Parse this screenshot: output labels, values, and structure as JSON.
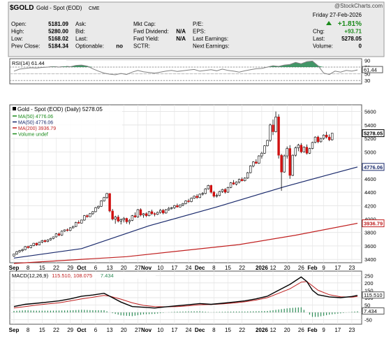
{
  "header": {
    "symbol": "$GOLD",
    "name": "Gold - Spot (EOD)",
    "exchange": "CME",
    "source": "@StockCharts.com",
    "date": "Friday   27-Feb-2026",
    "rows": [
      [
        {
          "l": "Open:",
          "v": "5181.09"
        },
        {
          "l": "Ask:",
          "v": ""
        },
        {
          "l": "Mkt Cap:",
          "v": ""
        },
        {
          "l": "P/E:",
          "v": ""
        }
      ],
      [
        {
          "l": "High:",
          "v": "5280.00"
        },
        {
          "l": "Bid:",
          "v": ""
        },
        {
          "l": "Fwd Dividend:",
          "v": "N/A"
        },
        {
          "l": "EPS:",
          "v": ""
        }
      ],
      [
        {
          "l": "Low:",
          "v": "5168.02"
        },
        {
          "l": "Last:",
          "v": ""
        },
        {
          "l": "Fwd Yield:",
          "v": "N/A"
        },
        {
          "l": "Last Earnings:",
          "v": ""
        }
      ],
      [
        {
          "l": "Prev Close:",
          "v": "5184.34"
        },
        {
          "l": "Optionable:",
          "v": "no"
        },
        {
          "l": "SCTR:",
          "v": ""
        },
        {
          "l": "Next Earnings:",
          "v": ""
        }
      ]
    ],
    "right": [
      {
        "l": "",
        "v": "+1.81%"
      },
      {
        "l": "Chg:",
        "v": "+93.71"
      },
      {
        "l": "Last:",
        "v": "5278.05"
      },
      {
        "l": "Volume:",
        "v": "0"
      }
    ],
    "colors": {
      "up": "#1a8a1a",
      "bg": "#eaeaea",
      "border": "#999999"
    }
  },
  "chart_data": [
    {
      "type": "line",
      "panel": "rsi",
      "title": "RSI(14) 61.44",
      "last_value": 61.44,
      "ylim": [
        20,
        95
      ],
      "yticks": [
        30,
        50,
        70,
        90
      ],
      "overbought": 70,
      "oversold": 30,
      "x": [
        0,
        2,
        4,
        6,
        8,
        10,
        12,
        14,
        16,
        18,
        20,
        22,
        24,
        26,
        28,
        30,
        32,
        34,
        36,
        38,
        40,
        42,
        44,
        46,
        48,
        50,
        52,
        54,
        56,
        58,
        60,
        62,
        64,
        66,
        68,
        70,
        72,
        74,
        76,
        78,
        80,
        82,
        84,
        86,
        88,
        90,
        92,
        94,
        96,
        98,
        100,
        102,
        104,
        106,
        108,
        110,
        112,
        114,
        116,
        118,
        120,
        122
      ],
      "values": [
        58,
        64,
        66,
        68,
        67,
        69,
        70,
        72,
        70,
        73,
        71,
        75,
        76,
        73,
        65,
        58,
        52,
        49,
        47,
        51,
        48,
        55,
        60,
        56,
        54,
        52,
        55,
        58,
        60,
        57,
        59,
        61,
        63,
        58,
        60,
        62,
        59,
        64,
        60,
        58,
        55,
        59,
        62,
        65,
        66,
        70,
        74,
        72,
        76,
        78,
        84,
        80,
        86,
        88,
        74,
        52,
        48,
        58,
        55,
        60,
        58,
        61.44
      ],
      "colors": {
        "line": "#808080",
        "fill": "#2e8b57"
      }
    },
    {
      "type": "candlestick",
      "panel": "price",
      "title": "Gold - Spot (EOD) (Daily) 5278.05",
      "legend": [
        {
          "name": "MA(50) 4776.06",
          "color": "#1a8a1a"
        },
        {
          "name": "MA(50) 4776.06",
          "color": "#1a2a6c"
        },
        {
          "name": "MA(200) 3936.79",
          "color": "#c02020"
        },
        {
          "name": "Volume undef",
          "color": "#1a8a1a"
        }
      ],
      "ylim": [
        3350,
        5700
      ],
      "yticks": [
        3400,
        3600,
        3800,
        4000,
        4200,
        4400,
        4600,
        4800,
        5000,
        5200,
        5400,
        5600
      ],
      "value_labels": [
        {
          "text": "5278.05",
          "value": 5278.05,
          "color": "#000000"
        },
        {
          "text": "4776.06",
          "value": 4776.06,
          "color": "#1a2a6c"
        },
        {
          "text": "3936.79",
          "value": 3936.79,
          "color": "#c02020"
        }
      ],
      "x_labels": [
        {
          "i": 0,
          "text": "Sep",
          "bold": true
        },
        {
          "i": 5,
          "text": "8"
        },
        {
          "i": 10,
          "text": "15"
        },
        {
          "i": 15,
          "text": "22"
        },
        {
          "i": 20,
          "text": "29"
        },
        {
          "i": 24,
          "text": "Oct",
          "bold": true
        },
        {
          "i": 29,
          "text": "6"
        },
        {
          "i": 34,
          "text": "13"
        },
        {
          "i": 39,
          "text": "20"
        },
        {
          "i": 44,
          "text": "27"
        },
        {
          "i": 47,
          "text": "Nov",
          "bold": true
        },
        {
          "i": 52,
          "text": "10"
        },
        {
          "i": 57,
          "text": "17"
        },
        {
          "i": 62,
          "text": "24"
        },
        {
          "i": 66,
          "text": "Dec",
          "bold": true
        },
        {
          "i": 71,
          "text": "8"
        },
        {
          "i": 76,
          "text": "15"
        },
        {
          "i": 81,
          "text": "22"
        },
        {
          "i": 88,
          "text": "2026",
          "bold": true
        },
        {
          "i": 92,
          "text": "12"
        },
        {
          "i": 97,
          "text": "20"
        },
        {
          "i": 102,
          "text": "26"
        },
        {
          "i": 106,
          "text": "Feb",
          "bold": true
        },
        {
          "i": 110,
          "text": "9"
        },
        {
          "i": 115,
          "text": "17"
        },
        {
          "i": 120,
          "text": "23"
        }
      ],
      "candles": [
        [
          3450,
          3485,
          3440,
          3480
        ],
        [
          3480,
          3525,
          3470,
          3515
        ],
        [
          3515,
          3540,
          3500,
          3530
        ],
        [
          3530,
          3560,
          3510,
          3545
        ],
        [
          3545,
          3600,
          3535,
          3590
        ],
        [
          3590,
          3605,
          3560,
          3575
        ],
        [
          3575,
          3615,
          3565,
          3605
        ],
        [
          3605,
          3645,
          3595,
          3640
        ],
        [
          3640,
          3650,
          3600,
          3615
        ],
        [
          3615,
          3660,
          3610,
          3655
        ],
        [
          3655,
          3690,
          3640,
          3680
        ],
        [
          3680,
          3695,
          3650,
          3665
        ],
        [
          3665,
          3700,
          3655,
          3690
        ],
        [
          3690,
          3720,
          3680,
          3710
        ],
        [
          3710,
          3740,
          3700,
          3735
        ],
        [
          3735,
          3790,
          3725,
          3780
        ],
        [
          3780,
          3800,
          3745,
          3760
        ],
        [
          3760,
          3830,
          3750,
          3820
        ],
        [
          3820,
          3845,
          3810,
          3840
        ],
        [
          3840,
          3860,
          3815,
          3830
        ],
        [
          3830,
          3880,
          3820,
          3870
        ],
        [
          3870,
          3900,
          3860,
          3890
        ],
        [
          3890,
          3960,
          3880,
          3950
        ],
        [
          3950,
          3980,
          3930,
          3940
        ],
        [
          3940,
          3990,
          3935,
          3985
        ],
        [
          3985,
          4060,
          3975,
          4050
        ],
        [
          4050,
          4070,
          4020,
          4035
        ],
        [
          4035,
          4090,
          4030,
          4080
        ],
        [
          4080,
          4120,
          4060,
          4110
        ],
        [
          4110,
          4180,
          4100,
          4170
        ],
        [
          4170,
          4200,
          4150,
          4190
        ],
        [
          4190,
          4280,
          4180,
          4270
        ],
        [
          4270,
          4330,
          4260,
          4320
        ],
        [
          4320,
          4390,
          4300,
          4380
        ],
        [
          4380,
          4385,
          4100,
          4120
        ],
        [
          4120,
          4150,
          3980,
          4000
        ],
        [
          4000,
          4050,
          3930,
          4030
        ],
        [
          4030,
          4060,
          3950,
          3970
        ],
        [
          3970,
          4010,
          3920,
          3990
        ],
        [
          3990,
          4030,
          3950,
          4010
        ],
        [
          4010,
          4020,
          3930,
          3960
        ],
        [
          3960,
          4000,
          3920,
          3980
        ],
        [
          3980,
          4060,
          3970,
          4050
        ],
        [
          4050,
          4100,
          4020,
          4030
        ],
        [
          4030,
          4150,
          4020,
          4140
        ],
        [
          4140,
          4160,
          4040,
          4060
        ],
        [
          4060,
          4090,
          4020,
          4080
        ],
        [
          4080,
          4100,
          4030,
          4050
        ],
        [
          4050,
          4120,
          4040,
          4110
        ],
        [
          4110,
          4140,
          4060,
          4080
        ],
        [
          4080,
          4100,
          4040,
          4070
        ],
        [
          4070,
          4110,
          4060,
          4100
        ],
        [
          4100,
          4150,
          4080,
          4130
        ],
        [
          4130,
          4150,
          4070,
          4090
        ],
        [
          4090,
          4150,
          4080,
          4140
        ],
        [
          4140,
          4180,
          4120,
          4160
        ],
        [
          4160,
          4180,
          4140,
          4170
        ],
        [
          4170,
          4210,
          4150,
          4200
        ],
        [
          4200,
          4230,
          4170,
          4180
        ],
        [
          4180,
          4220,
          4170,
          4210
        ],
        [
          4210,
          4240,
          4190,
          4230
        ],
        [
          4230,
          4280,
          4220,
          4270
        ],
        [
          4270,
          4300,
          4240,
          4260
        ],
        [
          4260,
          4320,
          4250,
          4310
        ],
        [
          4310,
          4350,
          4300,
          4340
        ],
        [
          4340,
          4370,
          4300,
          4320
        ],
        [
          4320,
          4380,
          4310,
          4370
        ],
        [
          4370,
          4400,
          4350,
          4380
        ],
        [
          4380,
          4460,
          4370,
          4450
        ],
        [
          4450,
          4510,
          4440,
          4500
        ],
        [
          4500,
          4510,
          4380,
          4400
        ],
        [
          4400,
          4420,
          4320,
          4340
        ],
        [
          4340,
          4380,
          4320,
          4350
        ],
        [
          4350,
          4420,
          4340,
          4410
        ],
        [
          4410,
          4450,
          4390,
          4440
        ],
        [
          4440,
          4460,
          4380,
          4400
        ],
        [
          4400,
          4480,
          4390,
          4470
        ],
        [
          4470,
          4550,
          4460,
          4540
        ],
        [
          4540,
          4580,
          4510,
          4520
        ],
        [
          4520,
          4560,
          4500,
          4550
        ],
        [
          4550,
          4600,
          4530,
          4590
        ],
        [
          4590,
          4620,
          4560,
          4570
        ],
        [
          4570,
          4620,
          4560,
          4610
        ],
        [
          4610,
          4700,
          4600,
          4690
        ],
        [
          4690,
          4800,
          4680,
          4790
        ],
        [
          4790,
          4860,
          4770,
          4850
        ],
        [
          4850,
          4890,
          4820,
          4830
        ],
        [
          4830,
          4950,
          4820,
          4940
        ],
        [
          4940,
          5000,
          4900,
          4980
        ],
        [
          4980,
          5100,
          4970,
          5090
        ],
        [
          5090,
          5180,
          5080,
          5170
        ],
        [
          5170,
          5420,
          5150,
          5400
        ],
        [
          5400,
          5480,
          5250,
          5300
        ],
        [
          5300,
          5600,
          5290,
          5520
        ],
        [
          5520,
          5560,
          4900,
          4950
        ],
        [
          4950,
          4970,
          4420,
          4700
        ],
        [
          4700,
          4960,
          4690,
          4940
        ],
        [
          4940,
          5080,
          4900,
          5050
        ],
        [
          5050,
          5100,
          4600,
          4650
        ],
        [
          4650,
          4960,
          4640,
          4950
        ],
        [
          4950,
          5080,
          4930,
          5060
        ],
        [
          5060,
          5120,
          5010,
          5100
        ],
        [
          5100,
          5130,
          4980,
          5000
        ],
        [
          5000,
          5080,
          4990,
          5070
        ],
        [
          5070,
          5110,
          4960,
          4980
        ],
        [
          4980,
          5060,
          4970,
          5050
        ],
        [
          5050,
          5150,
          5040,
          5140
        ],
        [
          5140,
          5230,
          5130,
          5220
        ],
        [
          5220,
          5240,
          5130,
          5150
        ],
        [
          5150,
          5210,
          5140,
          5200
        ],
        [
          5200,
          5260,
          5180,
          5250
        ],
        [
          5250,
          5300,
          5200,
          5220
        ],
        [
          5220,
          5260,
          5160,
          5180
        ],
        [
          5180,
          5280,
          5168,
          5278
        ]
      ],
      "start_index": 0,
      "ma50": [
        [
          0,
          3420
        ],
        [
          24,
          3560
        ],
        [
          48,
          3900
        ],
        [
          72,
          4180
        ],
        [
          96,
          4480
        ],
        [
          110,
          4640
        ],
        [
          122,
          4776
        ]
      ],
      "ma200": [
        [
          0,
          3340
        ],
        [
          40,
          3440
        ],
        [
          80,
          3620
        ],
        [
          100,
          3760
        ],
        [
          122,
          3937
        ]
      ],
      "colors": {
        "up_body": "#ffffff",
        "down_body": "#d01010",
        "wick": "#000000",
        "ma50": "#1a2a6c",
        "ma200": "#c02020",
        "grid": "#d8d8d8"
      }
    },
    {
      "type": "line",
      "panel": "macd",
      "title": "MACD(12,26,9) 115.510, 108.075, 7.434",
      "legend": [
        {
          "name": "MACD(12,26,9)",
          "color": "#000000"
        },
        {
          "name": "115.510, 108.075",
          "color": "#c02020"
        },
        {
          "name": "7.434",
          "color": "#2e8b57"
        }
      ],
      "ylim": [
        -80,
        280
      ],
      "yticks": [
        -50,
        0,
        50,
        100,
        150,
        200,
        250
      ],
      "value_labels": [
        {
          "text": "115.510",
          "value": 115.51,
          "color": "#000000"
        },
        {
          "text": "7.434",
          "value": 7.434,
          "color": "#000000"
        }
      ],
      "x": [
        0,
        4,
        8,
        12,
        16,
        20,
        24,
        28,
        32,
        34,
        38,
        42,
        46,
        50,
        54,
        58,
        62,
        66,
        70,
        74,
        78,
        82,
        86,
        90,
        94,
        98,
        102,
        104,
        106,
        108,
        112,
        116,
        120,
        122
      ],
      "macd": [
        40,
        55,
        62,
        70,
        78,
        92,
        110,
        118,
        130,
        110,
        70,
        40,
        35,
        30,
        38,
        45,
        52,
        60,
        55,
        62,
        70,
        78,
        92,
        110,
        150,
        190,
        240,
        210,
        150,
        120,
        105,
        100,
        108,
        115.51
      ],
      "signal": [
        30,
        40,
        50,
        58,
        65,
        78,
        92,
        103,
        115,
        110,
        90,
        65,
        48,
        40,
        38,
        40,
        45,
        52,
        54,
        58,
        64,
        72,
        84,
        100,
        130,
        160,
        205,
        210,
        180,
        150,
        120,
        106,
        104,
        108.075
      ],
      "histogram": [
        10,
        15,
        12,
        12,
        13,
        14,
        18,
        15,
        15,
        0,
        -20,
        -25,
        -13,
        -10,
        0,
        5,
        7,
        8,
        1,
        4,
        6,
        6,
        8,
        10,
        20,
        30,
        35,
        0,
        -30,
        -30,
        -15,
        -6,
        4,
        7.434
      ],
      "colors": {
        "macd": "#000000",
        "signal": "#c02020",
        "hist": "#2e8b57"
      }
    }
  ]
}
